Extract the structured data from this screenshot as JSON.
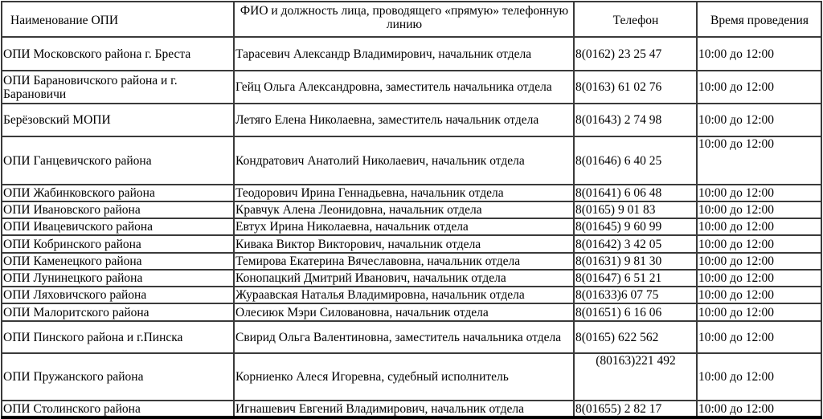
{
  "table": {
    "headers": [
      "Наименование ОПИ",
      "ФИО и должность лица, проводящего «прямую» телефонную линию",
      "Телефон",
      "Время проведения"
    ],
    "rows": [
      {
        "name": "ОПИ Московского района г. Бреста",
        "person": "Тарасевич Александр Владимирович, начальник отдела",
        "phone": "8(0162) 23 25 47",
        "time": "10:00 до 12:00"
      },
      {
        "name": "ОПИ Барановичского района и г. Барановичи",
        "person": "Гейц Ольга Александровна, заместитель начальника отдела",
        "phone": "8(0163) 61 02 76",
        "time": "10:00 до 12:00"
      },
      {
        "name": "Берёзовский МОПИ",
        "person": "Летяго Елена Николаевна, заместитель начальник отдела",
        "phone": "8(01643) 2 74 98",
        "time": "10:00 до 12:00"
      },
      {
        "name": "ОПИ Ганцевичского района",
        "person": "Кондратович Анатолий Николаевич, начальник отдела",
        "phone": "8(01646) 6 40 25",
        "time": "10:00 до 12:00"
      },
      {
        "name": "ОПИ Жабинковского района",
        "person": "Теодорович Ирина Геннадьевна, начальник отдела",
        "phone": "8(01641) 6 06 48",
        "time": "10:00 до 12:00"
      },
      {
        "name": "ОПИ Ивановского района",
        "person": "Кравчук Алена Леонидовна, начальник отдела",
        "phone": "8(0165) 9 01 83",
        "time": "10:00 до 12:00"
      },
      {
        "name": "ОПИ Ивацевичского района",
        "person": "Евтух Ирина Николаевна, начальник отдела",
        "phone": "8(01645) 9 60 99",
        "time": "10:00 до 12:00"
      },
      {
        "name": "ОПИ Кобринского района",
        "person": "Кивака Виктор Викторович, начальник отдела",
        "phone": "8(01642) 3 42 05",
        "time": "10:00 до 12:00"
      },
      {
        "name": "ОПИ Каменецкого района",
        "person": "Темирова Екатерина Вячеславовна, начальник отдела",
        "phone": "8(01631) 9 81 30",
        "time": "10:00 до 12:00"
      },
      {
        "name": "ОПИ Лунинецкого района",
        "person": "Конопацкий Дмитрий Иванович, начальник отдела",
        "phone": "8(01647) 6 51 21",
        "time": "10:00 до 12:00"
      },
      {
        "name": "ОПИ Ляховичского района",
        "person": "Жураавская Наталья Владимировна, начальник отдела",
        "phone": "8(01633)6 07 75",
        "time": "10:00 до 12:00"
      },
      {
        "name": "ОПИ Малоритского района",
        "person": "Олесиюк Мэри Силовановна, начальник отдела",
        "phone": "8(01651) 6 16 06",
        "time": "10:00 до 12:00"
      },
      {
        "name": "ОПИ Пинского района и г.Пинска",
        "person": "Свирид Ольга Валентиновна, заместитель начальника отдела",
        "phone": "8(0165) 622 562",
        "time": "10:00 до 12:00"
      },
      {
        "name": "ОПИ Пружанского района",
        "person": "Корниенко Алеся Игоревна, судебный исполнитель",
        "phone": "(80163)221 492",
        "time": "10:00 до 12:00"
      },
      {
        "name": "ОПИ Столинского района",
        "person": "Игнашевич Евгений Владимирович, начальник отдела",
        "phone": "8(01655) 2 82 17",
        "time": "10:00 до 12:00"
      }
    ]
  }
}
